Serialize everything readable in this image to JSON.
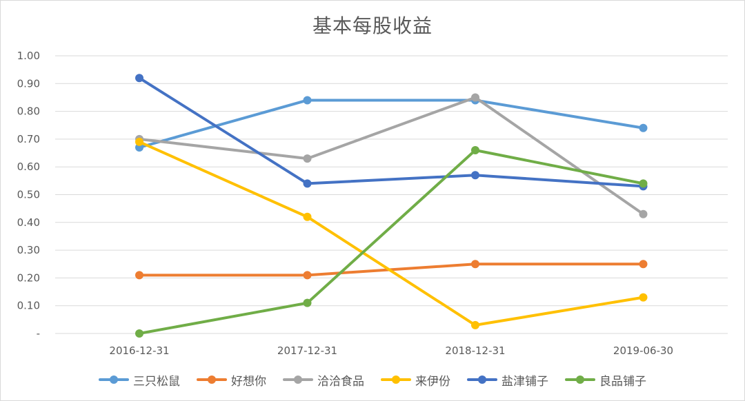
{
  "chart_data": {
    "type": "line",
    "title": "基本每股收益",
    "categories": [
      "2016-12-31",
      "2017-12-31",
      "2018-12-31",
      "2019-06-30"
    ],
    "ylim": [
      0,
      1.0
    ],
    "yticks": [
      {
        "value": 0,
        "label": "-"
      },
      {
        "value": 0.1,
        "label": "0.10"
      },
      {
        "value": 0.2,
        "label": "0.20"
      },
      {
        "value": 0.3,
        "label": "0.30"
      },
      {
        "value": 0.4,
        "label": "0.40"
      },
      {
        "value": 0.5,
        "label": "0.50"
      },
      {
        "value": 0.6,
        "label": "0.60"
      },
      {
        "value": 0.7,
        "label": "0.70"
      },
      {
        "value": 0.8,
        "label": "0.80"
      },
      {
        "value": 0.9,
        "label": "0.90"
      },
      {
        "value": 1.0,
        "label": "1.00"
      }
    ],
    "grid": true,
    "legend_position": "bottom",
    "series": [
      {
        "name": "三只松鼠",
        "color": "#5B9BD5",
        "values": [
          0.67,
          0.84,
          0.84,
          0.74
        ]
      },
      {
        "name": "好想你",
        "color": "#ED7D31",
        "values": [
          0.21,
          0.21,
          0.25,
          0.25
        ]
      },
      {
        "name": "洽洽食品",
        "color": "#A5A5A5",
        "values": [
          0.7,
          0.63,
          0.85,
          0.43
        ]
      },
      {
        "name": "来伊份",
        "color": "#FFC000",
        "values": [
          0.69,
          0.42,
          0.03,
          0.13
        ]
      },
      {
        "name": "盐津铺子",
        "color": "#4472C4",
        "values": [
          0.92,
          0.54,
          0.57,
          0.53
        ]
      },
      {
        "name": "良品铺子",
        "color": "#70AD47",
        "values": [
          0.0,
          0.11,
          0.66,
          0.54
        ]
      }
    ]
  }
}
